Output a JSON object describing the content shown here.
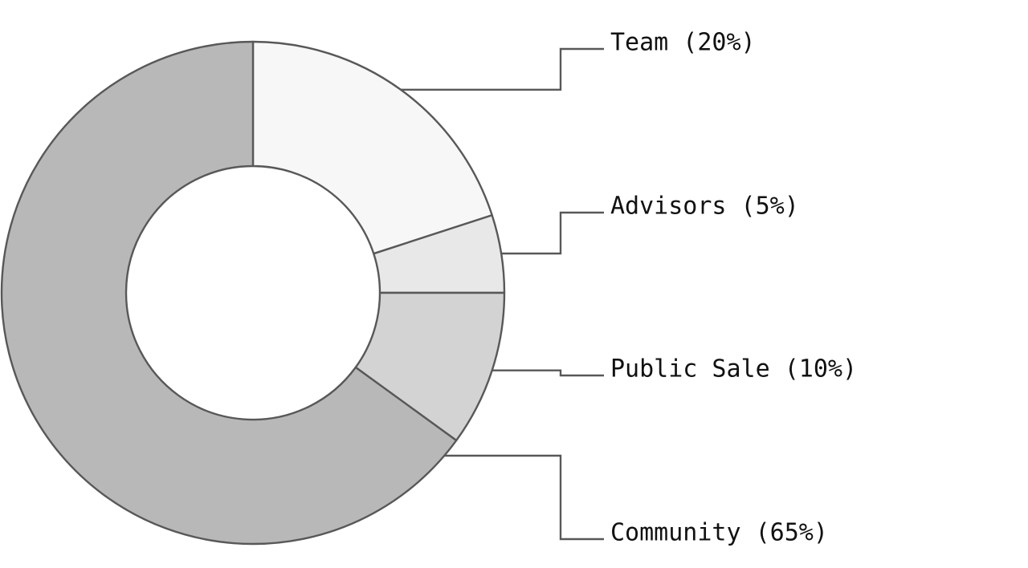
{
  "chart_data": {
    "type": "pie",
    "variant": "donut",
    "title": "",
    "slices": [
      {
        "label": "Team (20%)",
        "value": 20,
        "color": "#f7f7f7"
      },
      {
        "label": "Advisors (5%)",
        "value": 5,
        "color": "#e8e8e8"
      },
      {
        "label": "Public Sale (10%)",
        "value": 10,
        "color": "#d3d3d3"
      },
      {
        "label": "Community (65%)",
        "value": 65,
        "color": "#b8b8b8"
      }
    ],
    "legend": "none",
    "label_placement": "right, with leader lines"
  }
}
